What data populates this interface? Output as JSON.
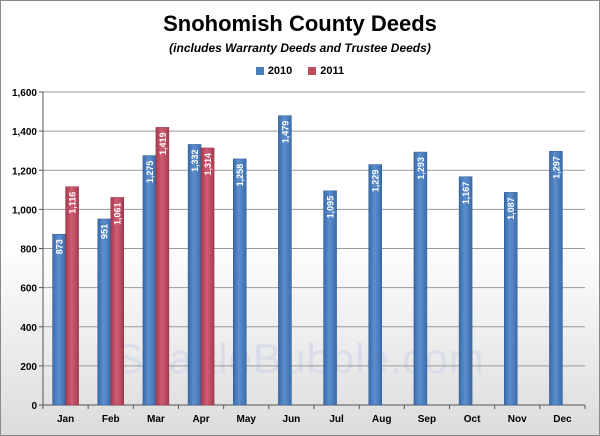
{
  "chart_data": {
    "type": "bar",
    "title": "Snohomish County Deeds",
    "subtitle": "(includes Warranty Deeds and Trustee Deeds)",
    "xlabel": "",
    "ylabel": "",
    "categories": [
      "Jan",
      "Feb",
      "Mar",
      "Apr",
      "May",
      "Jun",
      "Jul",
      "Aug",
      "Sep",
      "Oct",
      "Nov",
      "Dec"
    ],
    "series": [
      {
        "name": "2010",
        "color": "#4a7ebb",
        "values": [
          873,
          951,
          1275,
          1332,
          1258,
          1479,
          1095,
          1229,
          1293,
          1167,
          1087,
          1297
        ],
        "labels": [
          "873",
          "951",
          "1,275",
          "1,332",
          "1,258",
          "1,479",
          "1,095",
          "1,229",
          "1,293",
          "1,167",
          "1,087",
          "1,297"
        ]
      },
      {
        "name": "2011",
        "color": "#be4b60",
        "values": [
          1116,
          1061,
          1419,
          1314,
          null,
          null,
          null,
          null,
          null,
          null,
          null,
          null
        ],
        "labels": [
          "1,116",
          "1,061",
          "1,419",
          "1,314",
          "",
          "",
          "",
          "",
          "",
          "",
          "",
          ""
        ]
      }
    ],
    "ylim": [
      0,
      1600
    ],
    "yticks": [
      0,
      200,
      400,
      600,
      800,
      1000,
      1200,
      1400,
      1600
    ],
    "ytick_labels": [
      "0",
      "200",
      "400",
      "600",
      "800",
      "1,000",
      "1,200",
      "1,400",
      "1,600"
    ],
    "grid": true,
    "legend_position": "top-center"
  },
  "watermark": "SeattleBubble.com"
}
